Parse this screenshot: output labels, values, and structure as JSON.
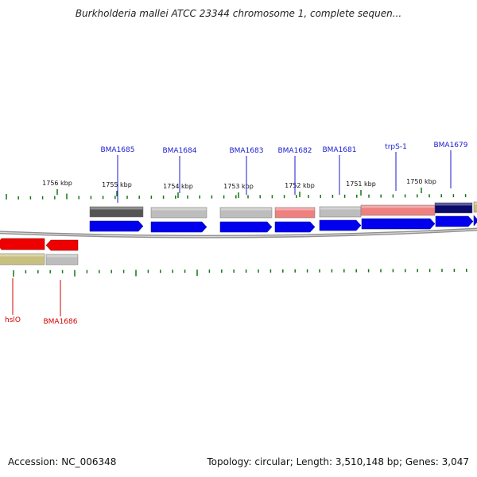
{
  "title": "Burkholderia mallei ATCC 23344 chromosome 1, complete sequen...",
  "footer": {
    "accession": "Accession: NC_006348",
    "summary": "Topology: circular; Length: 3,510,148 bp; Genes: 3,047"
  },
  "colors": {
    "label_blue": "#1a1ad0",
    "label_red": "#d40000",
    "cds_blue": "#0000ee",
    "tick_green": "#117711",
    "backbone_gray": "#9a9a9a",
    "feature_gray_light": "#bdbdbd",
    "feature_gray_dark": "#555555",
    "feature_pink": "#ee8080",
    "feature_navy": "#0a0a6a",
    "feature_red": "#ee0000",
    "feature_olive": "#c8c080"
  },
  "scale_labels": [
    "1756 kbp",
    "1755 kbp",
    "1754 kbp",
    "1753 kbp",
    "1752 kbp",
    "1751 kbp",
    "1750 kbp"
  ],
  "gene_labels": [
    {
      "text": "BMA1685",
      "strand": "forward",
      "color": "blue"
    },
    {
      "text": "BMA1684",
      "strand": "forward",
      "color": "blue"
    },
    {
      "text": "BMA1683",
      "strand": "forward",
      "color": "blue"
    },
    {
      "text": "BMA1682",
      "strand": "forward",
      "color": "blue"
    },
    {
      "text": "BMA1681",
      "strand": "forward",
      "color": "blue"
    },
    {
      "text": "trpS-1",
      "strand": "forward",
      "color": "blue"
    },
    {
      "text": "BMA1679",
      "strand": "forward",
      "color": "blue"
    },
    {
      "text": "hslO",
      "strand": "reverse",
      "color": "red"
    },
    {
      "text": "BMA1686",
      "strand": "reverse",
      "color": "red"
    }
  ]
}
